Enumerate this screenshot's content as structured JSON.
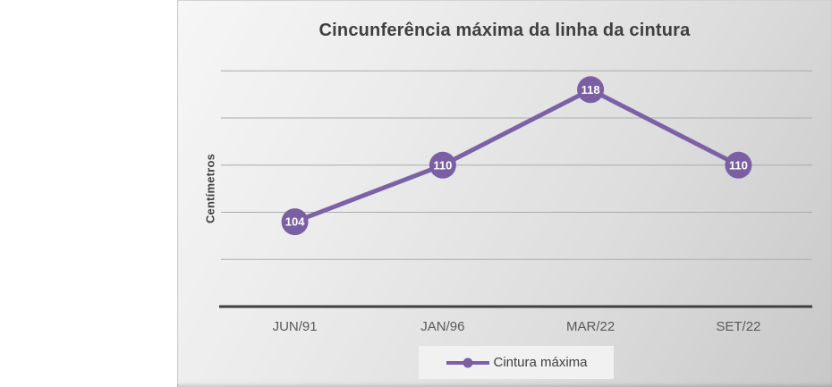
{
  "chart": {
    "title": "Cincunferência máxima da linha da cintura",
    "y_axis_title": "Centímetros",
    "legend": {
      "label": "Cintura máxima"
    }
  },
  "chart_data": {
    "type": "line",
    "categories": [
      "JUN/91",
      "JAN/96",
      "MAR/22",
      "SET/22"
    ],
    "series": [
      {
        "name": "Cintura máxima",
        "values": [
          104,
          110,
          118,
          110
        ]
      }
    ],
    "title": "Cincunferência máxima da linha da cintura",
    "xlabel": "",
    "ylabel": "Centímetros",
    "ylim": [
      95,
      120
    ],
    "gridline_interval": 5,
    "grid": true,
    "y_tick_labels_visible": false,
    "data_labels": "inside_marker",
    "legend_position": "bottom",
    "colors": {
      "series": "#7b61a6",
      "marker_fill": "#7a5fa3",
      "marker_text": "#ffffff",
      "gridline": "#ababab",
      "axis_line": "#404040",
      "title_text": "#3f3f3f",
      "tick_text": "#595959",
      "legend_bg": "#f1f1f1",
      "panel_gradient_start": "#f6f6f6",
      "panel_gradient_end": "#c8c8c8"
    }
  }
}
